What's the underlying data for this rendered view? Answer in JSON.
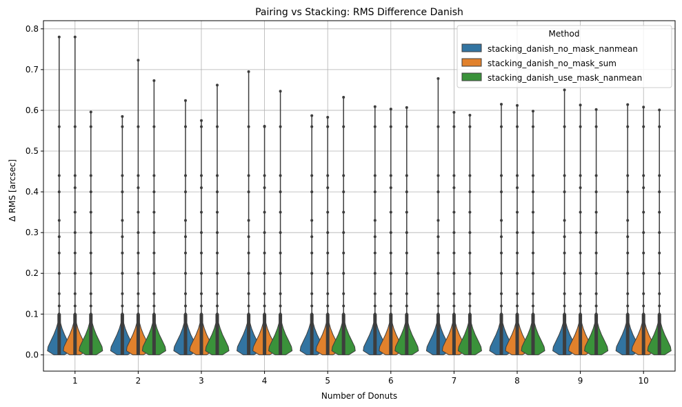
{
  "chart_data": {
    "type": "violin",
    "title": "Pairing vs Stacking: RMS Difference  Danish",
    "xlabel": "Number of Donuts",
    "ylabel": "Δ RMS [arcsec]",
    "categories": [
      "1",
      "2",
      "3",
      "4",
      "5",
      "6",
      "7",
      "8",
      "9",
      "10"
    ],
    "ylim": [
      -0.04,
      0.82
    ],
    "yticks": [
      "0.0",
      "0.1",
      "0.2",
      "0.3",
      "0.4",
      "0.5",
      "0.6",
      "0.7",
      "0.8"
    ],
    "ytick_values": [
      0.0,
      0.1,
      0.2,
      0.3,
      0.4,
      0.5,
      0.6,
      0.7,
      0.8
    ],
    "grid": true,
    "legend": {
      "title": "Method",
      "placement": "top-right"
    },
    "series": [
      {
        "name": "stacking_danish_no_mask_nanmean",
        "color": "#3274a1",
        "max": [
          0.78,
          0.585,
          0.624,
          0.695,
          0.587,
          0.609,
          0.678,
          0.615,
          0.65,
          0.614
        ],
        "outliers": [
          0.56,
          0.44,
          0.4,
          0.33,
          0.29,
          0.25,
          0.2,
          0.15,
          0.12,
          0.1
        ]
      },
      {
        "name": "stacking_danish_no_mask_sum",
        "color": "#e1812c",
        "max": [
          0.78,
          0.723,
          0.575,
          0.561,
          0.583,
          0.603,
          0.595,
          0.612,
          0.613,
          0.608
        ],
        "outliers": [
          0.56,
          0.44,
          0.41,
          0.35,
          0.3,
          0.25,
          0.2,
          0.15,
          0.12,
          0.1
        ]
      },
      {
        "name": "stacking_danish_use_mask_nanmean",
        "color": "#3a923a",
        "max": [
          0.596,
          0.673,
          0.662,
          0.647,
          0.632,
          0.607,
          0.588,
          0.598,
          0.602,
          0.601
        ],
        "outliers": [
          0.56,
          0.44,
          0.4,
          0.35,
          0.3,
          0.25,
          0.2,
          0.15,
          0.12,
          0.1
        ]
      }
    ]
  }
}
